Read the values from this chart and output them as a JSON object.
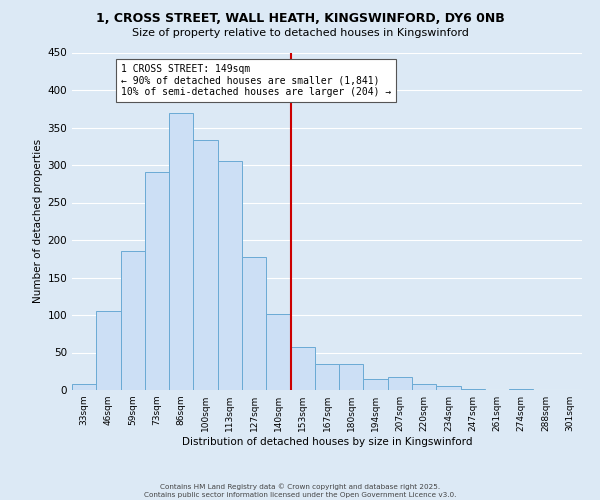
{
  "title_line1": "1, CROSS STREET, WALL HEATH, KINGSWINFORD, DY6 0NB",
  "title_line2": "Size of property relative to detached houses in Kingswinford",
  "xlabel": "Distribution of detached houses by size in Kingswinford",
  "ylabel": "Number of detached properties",
  "bar_labels": [
    "33sqm",
    "46sqm",
    "59sqm",
    "73sqm",
    "86sqm",
    "100sqm",
    "113sqm",
    "127sqm",
    "140sqm",
    "153sqm",
    "167sqm",
    "180sqm",
    "194sqm",
    "207sqm",
    "220sqm",
    "234sqm",
    "247sqm",
    "261sqm",
    "274sqm",
    "288sqm",
    "301sqm"
  ],
  "bar_heights": [
    8,
    105,
    185,
    291,
    370,
    333,
    306,
    178,
    101,
    58,
    35,
    35,
    15,
    18,
    8,
    5,
    2,
    0,
    2,
    0,
    0
  ],
  "bar_color": "#ccdff5",
  "bar_edge_color": "#6aaad4",
  "vline_x_index": 8.5,
  "vline_color": "#cc0000",
  "annotation_title": "1 CROSS STREET: 149sqm",
  "annotation_line2": "← 90% of detached houses are smaller (1,841)",
  "annotation_line3": "10% of semi-detached houses are larger (204) →",
  "annotation_box_color": "#ffffff",
  "annotation_box_edge": "#555555",
  "ylim": [
    0,
    450
  ],
  "yticks": [
    0,
    50,
    100,
    150,
    200,
    250,
    300,
    350,
    400,
    450
  ],
  "footer_line1": "Contains HM Land Registry data © Crown copyright and database right 2025.",
  "footer_line2": "Contains public sector information licensed under the Open Government Licence v3.0.",
  "bg_color": "#dce9f5",
  "plot_bg_color": "#dce9f5",
  "grid_color": "#ffffff"
}
